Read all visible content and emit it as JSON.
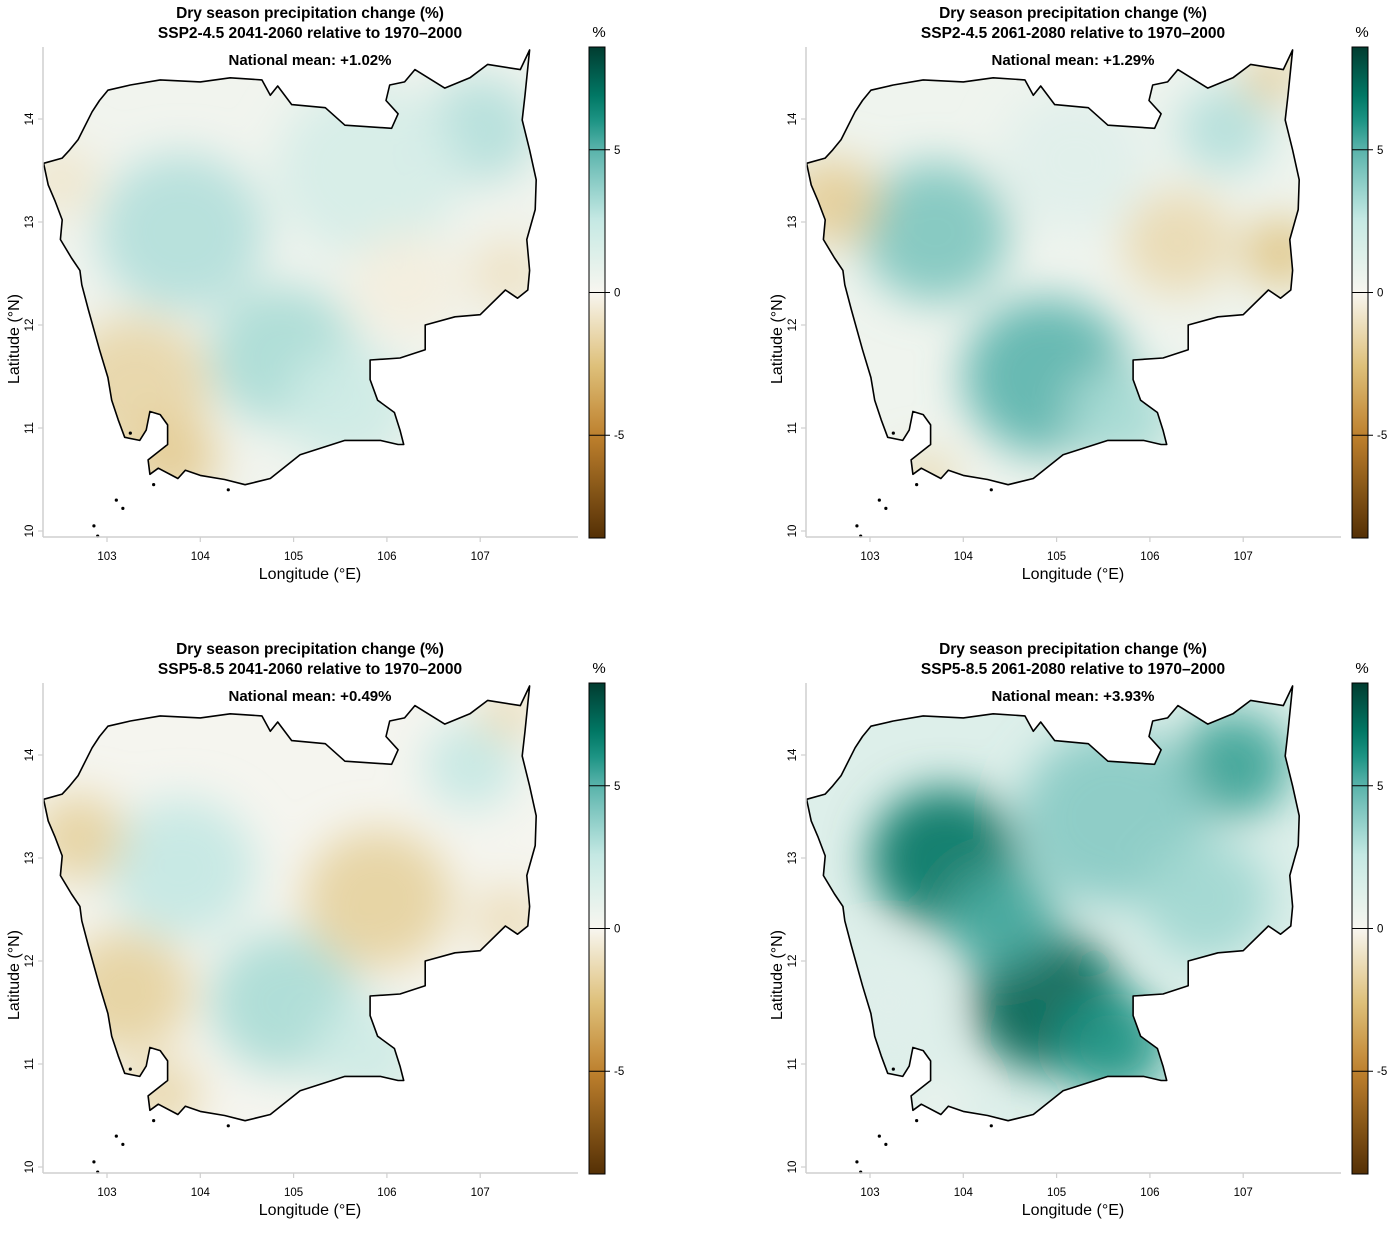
{
  "figure": {
    "xlabel": "Longitude (°E)",
    "ylabel": "Latitude (°N)",
    "colorbar_unit": "%"
  },
  "chart_data": [
    {
      "type": "heatmap",
      "title": "Dry season precipitation change (%)",
      "subtitle": "SSP2-4.5 2041-2060 relative to 1970–2000",
      "annotation": "National mean: +1.02%",
      "xlabel": "Longitude (°E)",
      "ylabel": "Latitude (°N)",
      "xlim": [
        102.3,
        107.65
      ],
      "ylim": [
        9.94,
        14.7
      ],
      "x_ticks": [
        "103",
        "104",
        "105",
        "106",
        "107"
      ],
      "y_ticks": [
        "10",
        "11",
        "12",
        "13",
        "14"
      ],
      "colorbar": {
        "label": "%",
        "range": [
          -8.6,
          8.6
        ],
        "ticks": [
          "5",
          "0",
          "-5"
        ]
      },
      "national_mean": 1.02,
      "field_blobs": [
        {
          "lon": 103.8,
          "lat": 12.9,
          "value": 3.0,
          "r": 0.9
        },
        {
          "lon": 104.9,
          "lat": 11.7,
          "value": 3.2,
          "r": 0.8
        },
        {
          "lon": 107.0,
          "lat": 13.9,
          "value": 3.0,
          "r": 0.6
        },
        {
          "lon": 105.8,
          "lat": 13.5,
          "value": 1.8,
          "r": 1.0
        },
        {
          "lon": 105.6,
          "lat": 11.2,
          "value": 2.2,
          "r": 0.7
        },
        {
          "lon": 103.3,
          "lat": 11.4,
          "value": -1.6,
          "r": 0.8
        },
        {
          "lon": 103.7,
          "lat": 10.7,
          "value": -2.0,
          "r": 0.5
        },
        {
          "lon": 102.5,
          "lat": 13.4,
          "value": -0.8,
          "r": 0.4
        },
        {
          "lon": 106.2,
          "lat": 12.4,
          "value": -0.4,
          "r": 0.6
        },
        {
          "lon": 107.3,
          "lat": 12.5,
          "value": -1.0,
          "r": 0.4
        }
      ]
    },
    {
      "type": "heatmap",
      "title": "Dry season precipitation change (%)",
      "subtitle": "SSP2-4.5 2061-2080 relative to 1970–2000",
      "annotation": "National mean: +1.29%",
      "xlabel": "Longitude (°E)",
      "ylabel": "Latitude (°N)",
      "xlim": [
        102.3,
        107.65
      ],
      "ylim": [
        9.94,
        14.7
      ],
      "x_ticks": [
        "103",
        "104",
        "105",
        "106",
        "107"
      ],
      "y_ticks": [
        "10",
        "11",
        "12",
        "13",
        "14"
      ],
      "colorbar": {
        "label": "%",
        "range": [
          -8.6,
          8.6
        ],
        "ticks": [
          "5",
          "0",
          "-5"
        ]
      },
      "national_mean": 1.29,
      "field_blobs": [
        {
          "lon": 103.7,
          "lat": 12.9,
          "value": 4.2,
          "r": 0.8
        },
        {
          "lon": 104.9,
          "lat": 11.5,
          "value": 5.0,
          "r": 0.9
        },
        {
          "lon": 106.8,
          "lat": 13.9,
          "value": 3.0,
          "r": 0.5
        },
        {
          "lon": 105.7,
          "lat": 11.1,
          "value": 3.2,
          "r": 0.6
        },
        {
          "lon": 105.2,
          "lat": 13.6,
          "value": 1.2,
          "r": 0.8
        },
        {
          "lon": 102.6,
          "lat": 13.2,
          "value": -2.0,
          "r": 0.5
        },
        {
          "lon": 103.6,
          "lat": 10.5,
          "value": -1.6,
          "r": 0.3
        },
        {
          "lon": 106.3,
          "lat": 12.8,
          "value": -1.4,
          "r": 0.6
        },
        {
          "lon": 107.4,
          "lat": 12.7,
          "value": -2.4,
          "r": 0.4
        },
        {
          "lon": 107.3,
          "lat": 14.4,
          "value": -2.0,
          "r": 0.3
        }
      ]
    },
    {
      "type": "heatmap",
      "title": "Dry season precipitation change (%)",
      "subtitle": "SSP5-8.5 2041-2060 relative to 1970–2000",
      "annotation": "National mean: +0.49%",
      "xlabel": "Longitude (°E)",
      "ylabel": "Latitude (°N)",
      "xlim": [
        102.3,
        107.65
      ],
      "ylim": [
        9.94,
        14.7
      ],
      "x_ticks": [
        "103",
        "104",
        "105",
        "106",
        "107"
      ],
      "y_ticks": [
        "10",
        "11",
        "12",
        "13",
        "14"
      ],
      "colorbar": {
        "label": "%",
        "range": [
          -8.6,
          8.6
        ],
        "ticks": [
          "5",
          "0",
          "-5"
        ]
      },
      "national_mean": 0.49,
      "field_blobs": [
        {
          "lon": 103.8,
          "lat": 12.9,
          "value": 2.6,
          "r": 0.8
        },
        {
          "lon": 104.9,
          "lat": 11.6,
          "value": 3.2,
          "r": 0.8
        },
        {
          "lon": 106.9,
          "lat": 13.9,
          "value": 2.6,
          "r": 0.5
        },
        {
          "lon": 105.8,
          "lat": 11.1,
          "value": 2.2,
          "r": 0.6
        },
        {
          "lon": 102.7,
          "lat": 13.2,
          "value": -1.8,
          "r": 0.5
        },
        {
          "lon": 103.2,
          "lat": 11.7,
          "value": -1.8,
          "r": 0.7
        },
        {
          "lon": 103.6,
          "lat": 10.7,
          "value": -1.6,
          "r": 0.4
        },
        {
          "lon": 105.9,
          "lat": 12.6,
          "value": -1.8,
          "r": 0.8
        },
        {
          "lon": 107.3,
          "lat": 12.4,
          "value": -1.2,
          "r": 0.4
        },
        {
          "lon": 107.3,
          "lat": 14.4,
          "value": -1.4,
          "r": 0.3
        }
      ]
    },
    {
      "type": "heatmap",
      "title": "Dry season precipitation change (%)",
      "subtitle": "SSP5-8.5 2061-2080 relative to 1970–2000",
      "annotation": "National mean: +3.93%",
      "xlabel": "Longitude (°E)",
      "ylabel": "Latitude (°N)",
      "xlim": [
        102.3,
        107.65
      ],
      "ylim": [
        9.94,
        14.7
      ],
      "x_ticks": [
        "103",
        "104",
        "105",
        "106",
        "107"
      ],
      "y_ticks": [
        "10",
        "11",
        "12",
        "13",
        "14"
      ],
      "colorbar": {
        "label": "%",
        "range": [
          -8.6,
          8.6
        ],
        "ticks": [
          "5",
          "0",
          "-5"
        ]
      },
      "national_mean": 3.93,
      "field_blobs": [
        {
          "lon": 103.8,
          "lat": 13.0,
          "value": 7.0,
          "r": 0.8
        },
        {
          "lon": 104.9,
          "lat": 11.6,
          "value": 7.6,
          "r": 0.8
        },
        {
          "lon": 104.4,
          "lat": 12.4,
          "value": 5.4,
          "r": 0.6
        },
        {
          "lon": 105.6,
          "lat": 11.2,
          "value": 6.0,
          "r": 0.6
        },
        {
          "lon": 106.9,
          "lat": 13.9,
          "value": 5.6,
          "r": 0.6
        },
        {
          "lon": 105.6,
          "lat": 13.4,
          "value": 4.0,
          "r": 1.0
        },
        {
          "lon": 106.6,
          "lat": 12.6,
          "value": 3.4,
          "r": 0.7
        },
        {
          "lon": 103.2,
          "lat": 11.6,
          "value": 1.2,
          "r": 0.6
        },
        {
          "lon": 103.7,
          "lat": 10.6,
          "value": 0.4,
          "r": 0.3
        }
      ]
    }
  ]
}
